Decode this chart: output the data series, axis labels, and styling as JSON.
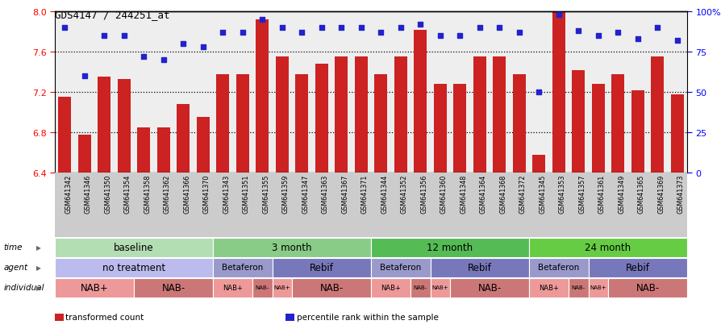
{
  "title": "GDS4147 / 244251_at",
  "samples": [
    "GSM641342",
    "GSM641346",
    "GSM641350",
    "GSM641354",
    "GSM641358",
    "GSM641362",
    "GSM641366",
    "GSM641370",
    "GSM641343",
    "GSM641351",
    "GSM641355",
    "GSM641359",
    "GSM641347",
    "GSM641363",
    "GSM641367",
    "GSM641371",
    "GSM641344",
    "GSM641352",
    "GSM641356",
    "GSM641360",
    "GSM641348",
    "GSM641364",
    "GSM641368",
    "GSM641372",
    "GSM641345",
    "GSM641353",
    "GSM641357",
    "GSM641361",
    "GSM641349",
    "GSM641365",
    "GSM641369",
    "GSM641373"
  ],
  "bar_values": [
    7.15,
    6.78,
    7.35,
    7.33,
    6.85,
    6.85,
    7.08,
    6.95,
    7.38,
    7.38,
    7.92,
    7.55,
    7.38,
    7.48,
    7.55,
    7.55,
    7.38,
    7.55,
    7.82,
    7.28,
    7.28,
    7.55,
    7.55,
    7.38,
    6.58,
    8.02,
    7.42,
    7.28,
    7.38,
    7.22,
    7.55,
    7.18
  ],
  "percentile_values": [
    90,
    60,
    85,
    85,
    72,
    70,
    80,
    78,
    87,
    87,
    95,
    90,
    87,
    90,
    90,
    90,
    87,
    90,
    92,
    85,
    85,
    90,
    90,
    87,
    50,
    98,
    88,
    85,
    87,
    83,
    90,
    82
  ],
  "bar_color": "#cc2222",
  "dot_color": "#2222cc",
  "ylim_left": [
    6.4,
    8.0
  ],
  "ylim_right": [
    0,
    100
  ],
  "yticks_left": [
    6.4,
    6.8,
    7.2,
    7.6,
    8.0
  ],
  "yticks_right": [
    0,
    25,
    50,
    75,
    100
  ],
  "ytick_labels_right": [
    "0",
    "25",
    "50",
    "75",
    "100%"
  ],
  "hlines": [
    6.8,
    7.2,
    7.6
  ],
  "time_segments": [
    {
      "text": "baseline",
      "start": 0,
      "end": 8,
      "color": "#b3ddb3"
    },
    {
      "text": "3 month",
      "start": 8,
      "end": 16,
      "color": "#88cc88"
    },
    {
      "text": "12 month",
      "start": 16,
      "end": 24,
      "color": "#55bb55"
    },
    {
      "text": "24 month",
      "start": 24,
      "end": 32,
      "color": "#66cc44"
    }
  ],
  "agent_segments": [
    {
      "text": "no treatment",
      "start": 0,
      "end": 8,
      "color": "#bbbbee"
    },
    {
      "text": "Betaferon",
      "start": 8,
      "end": 11,
      "color": "#9999cc"
    },
    {
      "text": "Rebif",
      "start": 11,
      "end": 16,
      "color": "#7777bb"
    },
    {
      "text": "Betaferon",
      "start": 16,
      "end": 19,
      "color": "#9999cc"
    },
    {
      "text": "Rebif",
      "start": 19,
      "end": 24,
      "color": "#7777bb"
    },
    {
      "text": "Betaferon",
      "start": 24,
      "end": 27,
      "color": "#9999cc"
    },
    {
      "text": "Rebif",
      "start": 27,
      "end": 32,
      "color": "#7777bb"
    }
  ],
  "individual_segments": [
    {
      "text": "NAB+",
      "start": 0,
      "end": 4,
      "color": "#ee9999"
    },
    {
      "text": "NAB-",
      "start": 4,
      "end": 8,
      "color": "#cc7777"
    },
    {
      "text": "NAB+",
      "start": 8,
      "end": 10,
      "color": "#ee9999"
    },
    {
      "text": "NAB-",
      "start": 10,
      "end": 11,
      "color": "#cc7777"
    },
    {
      "text": "NAB+",
      "start": 11,
      "end": 12,
      "color": "#ee9999"
    },
    {
      "text": "NAB-",
      "start": 12,
      "end": 16,
      "color": "#cc7777"
    },
    {
      "text": "NAB+",
      "start": 16,
      "end": 18,
      "color": "#ee9999"
    },
    {
      "text": "NAB-",
      "start": 18,
      "end": 19,
      "color": "#cc7777"
    },
    {
      "text": "NAB+",
      "start": 19,
      "end": 20,
      "color": "#ee9999"
    },
    {
      "text": "NAB-",
      "start": 20,
      "end": 24,
      "color": "#cc7777"
    },
    {
      "text": "NAB+",
      "start": 24,
      "end": 26,
      "color": "#ee9999"
    },
    {
      "text": "NAB-",
      "start": 26,
      "end": 27,
      "color": "#cc7777"
    },
    {
      "text": "NAB+",
      "start": 27,
      "end": 28,
      "color": "#ee9999"
    },
    {
      "text": "NAB-",
      "start": 28,
      "end": 32,
      "color": "#cc7777"
    }
  ],
  "legend": [
    {
      "color": "#cc2222",
      "text": "transformed count"
    },
    {
      "color": "#2222cc",
      "text": "percentile rank within the sample"
    }
  ]
}
